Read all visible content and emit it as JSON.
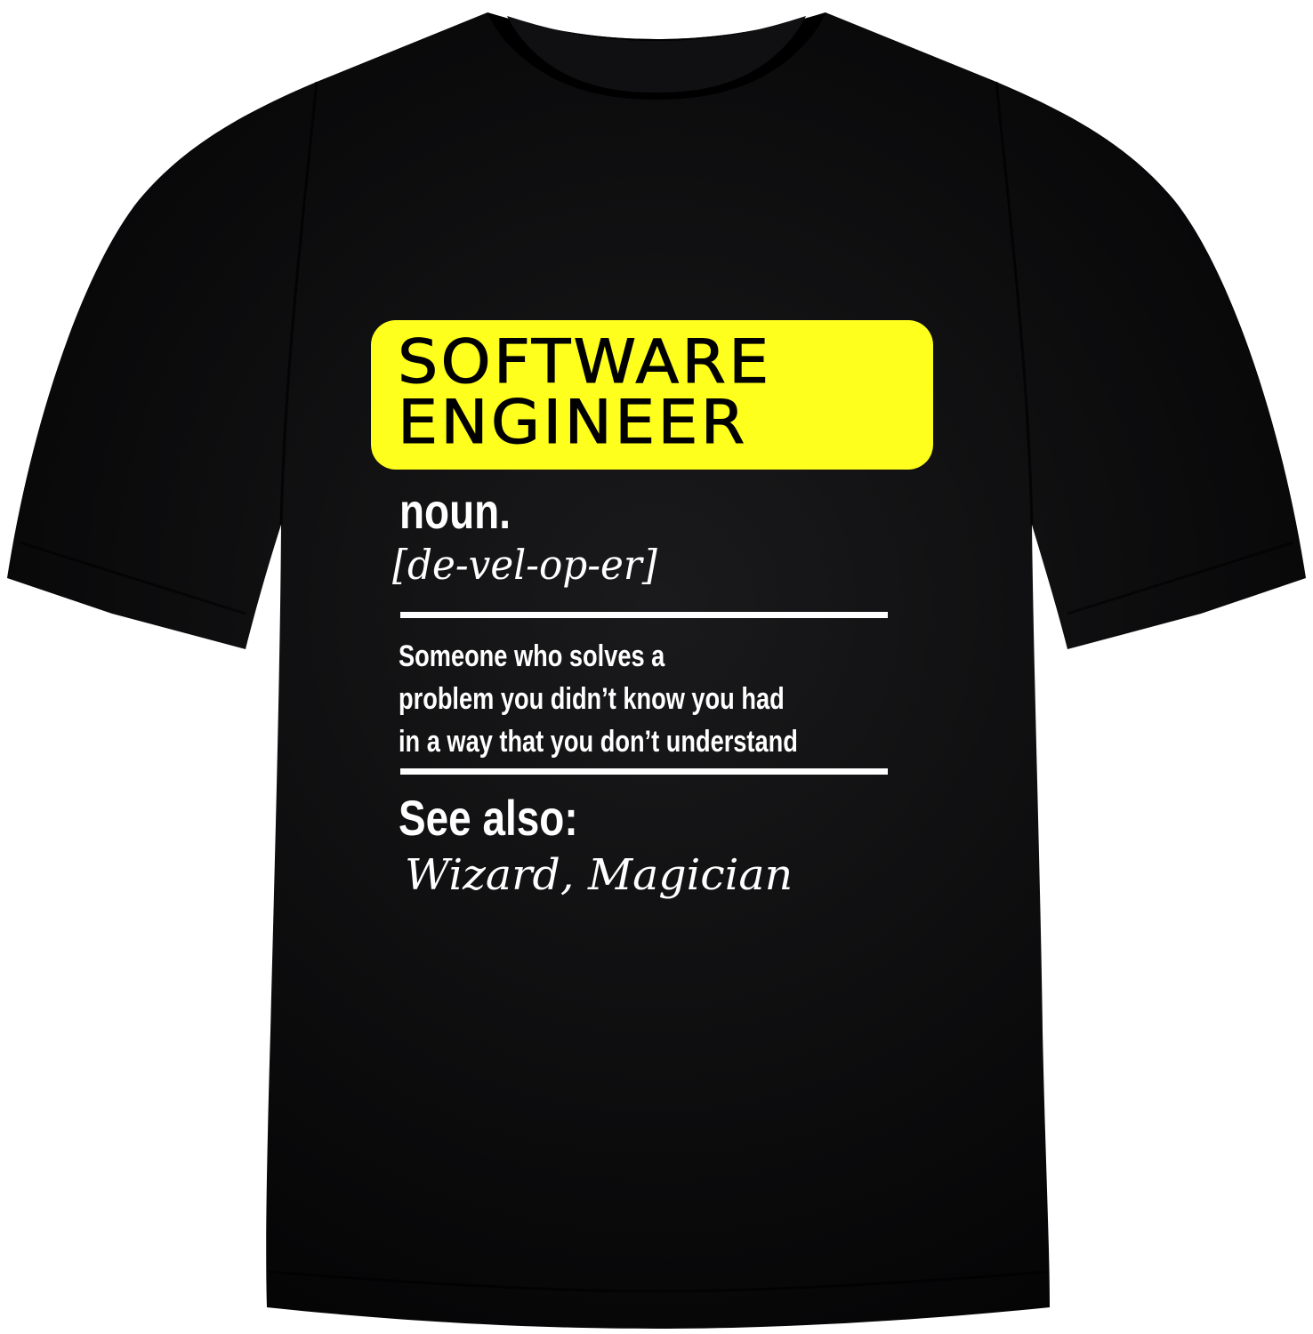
{
  "colors": {
    "background": "#ffffff",
    "shirt": "#0b0b0c",
    "shirt_shadow": "#050506",
    "shirt_highlight": "#1a1a1c",
    "title_box": "#ffff1e",
    "title_text": "#000000",
    "print_text": "#ffffff"
  },
  "shirt": {
    "icon": "tshirt-icon"
  },
  "print": {
    "title_lines": [
      "SOFTWARE",
      "ENGINEER"
    ],
    "part_of_speech": "noun.",
    "pronunciation": "[de-vel-op-er]",
    "definition_lines": [
      "Someone who solves a",
      "problem you didn’t know you had",
      "in a way that you don’t understand"
    ],
    "see_also_label": "See also:",
    "see_also_terms": "Wizard, Magician"
  }
}
